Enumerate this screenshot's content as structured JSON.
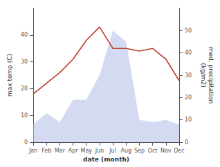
{
  "chart_data": {
    "type": "line",
    "categories": [
      "Jan",
      "Feb",
      "Mar",
      "Apr",
      "May",
      "Jun",
      "Jul",
      "Aug",
      "Sep",
      "Oct",
      "Nov",
      "Dec"
    ],
    "series": [
      {
        "type": "area",
        "color": "#b0bce8",
        "axis": "y2",
        "values": [
          8,
          13,
          9,
          19,
          19,
          30,
          50,
          45,
          10,
          9,
          10,
          8
        ]
      },
      {
        "type": "line",
        "color": "#c0392b",
        "values": [
          18,
          22,
          26,
          31,
          38,
          43,
          35,
          35,
          34,
          35,
          31,
          23
        ]
      }
    ],
    "xlabel": "date (month)",
    "ylabel": "max temp (C)",
    "y2label": "med. precipitation\n(kg/m2)",
    "ylim": [
      0,
      50
    ],
    "yticks": [
      0,
      10,
      20,
      30,
      40
    ],
    "y2lim": [
      0,
      60
    ],
    "y2ticks": [
      0,
      10,
      20,
      30,
      40,
      50
    ],
    "grid": false
  }
}
